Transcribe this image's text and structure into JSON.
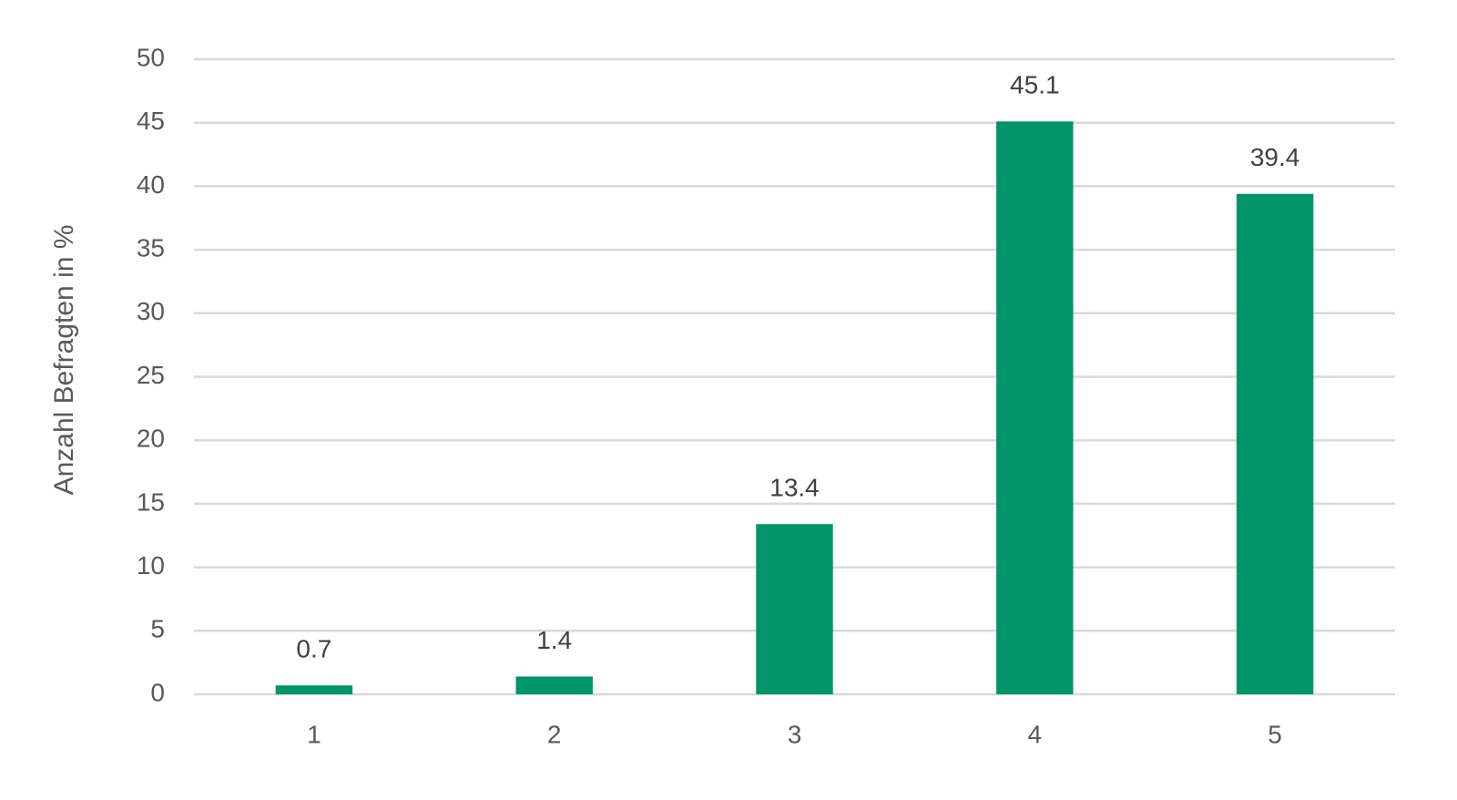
{
  "chart_data": {
    "type": "bar",
    "y_label": "Anzahl Befragten in %",
    "categories": [
      "1",
      "2",
      "3",
      "4",
      "5"
    ],
    "values": [
      0.7,
      1.4,
      13.4,
      45.1,
      39.4
    ],
    "color": "#009469",
    "ylim": [
      0,
      50
    ],
    "yticks": [
      0,
      5,
      10,
      15,
      20,
      25,
      30,
      35,
      40,
      45,
      50
    ],
    "grid": true
  }
}
